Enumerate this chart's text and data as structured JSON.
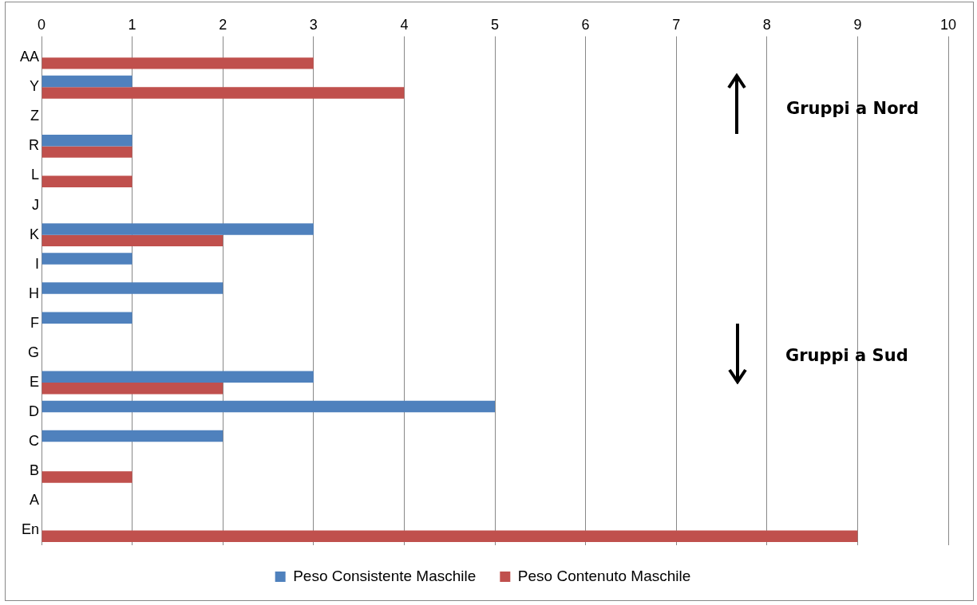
{
  "chart_data": {
    "type": "bar",
    "orientation": "horizontal",
    "categories": [
      "AA",
      "Y",
      "Z",
      "R",
      "L",
      "J",
      "K",
      "I",
      "H",
      "F",
      "G",
      "E",
      "D",
      "C",
      "B",
      "A",
      "En"
    ],
    "series": [
      {
        "name": "Peso Consistente Maschile",
        "color": "#4f81bd",
        "values": [
          null,
          1,
          null,
          1,
          null,
          null,
          3,
          1,
          2,
          1,
          null,
          3,
          5,
          2,
          null,
          null,
          null
        ]
      },
      {
        "name": "Peso Contenuto Maschile",
        "color": "#c0504d",
        "values": [
          3,
          4,
          null,
          1,
          1,
          null,
          2,
          null,
          null,
          null,
          null,
          2,
          null,
          null,
          1,
          null,
          9
        ]
      }
    ],
    "xlim": [
      0,
      10
    ],
    "xticks": [
      0,
      1,
      2,
      3,
      4,
      5,
      6,
      7,
      8,
      9,
      10
    ],
    "grid": "x",
    "legend": "bottom",
    "annotations": [
      "Gruppi a Nord",
      "Gruppi a Sud"
    ]
  }
}
